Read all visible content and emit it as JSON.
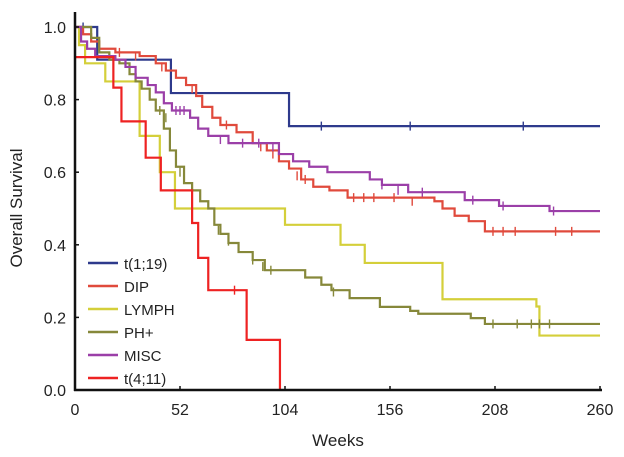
{
  "chart_data": {
    "type": "line",
    "subtype": "kaplan-meier step",
    "title": "",
    "xlabel": "Weeks",
    "ylabel": "Overall Survival",
    "xlim": [
      0,
      260
    ],
    "ylim": [
      0,
      1.0
    ],
    "x_ticks": [
      "0",
      "52",
      "104",
      "156",
      "208",
      "260"
    ],
    "y_ticks": [
      "0.0",
      "0.2",
      "0.4",
      "0.6",
      "0.8",
      "1.0"
    ],
    "grid": false,
    "legend_position": "bottom-left",
    "series": [
      {
        "name": "t(1;19)",
        "color": "#2e3a8c",
        "steps": [
          [
            0,
            1.0
          ],
          [
            11,
            0.91
          ],
          [
            47.5,
            0.818
          ],
          [
            106,
            0.727
          ]
        ],
        "censored": [
          [
            4,
            1.0
          ],
          [
            122,
            0.727
          ],
          [
            166,
            0.727
          ],
          [
            222,
            0.727
          ]
        ],
        "end": 260
      },
      {
        "name": "DIP",
        "color": "#e04a3c",
        "steps": [
          [
            0,
            1.0
          ],
          [
            4,
            0.98
          ],
          [
            8,
            0.96
          ],
          [
            12,
            0.94
          ],
          [
            20,
            0.93
          ],
          [
            32,
            0.92
          ],
          [
            40,
            0.9
          ],
          [
            45,
            0.88
          ],
          [
            50,
            0.86
          ],
          [
            55,
            0.84
          ],
          [
            60,
            0.81
          ],
          [
            63,
            0.78
          ],
          [
            68,
            0.75
          ],
          [
            72,
            0.73
          ],
          [
            80,
            0.71
          ],
          [
            88,
            0.68
          ],
          [
            95,
            0.66
          ],
          [
            101,
            0.63
          ],
          [
            106,
            0.61
          ],
          [
            112,
            0.58
          ],
          [
            118,
            0.56
          ],
          [
            126,
            0.55
          ],
          [
            135,
            0.53
          ],
          [
            178,
            0.52
          ],
          [
            182,
            0.5
          ],
          [
            188,
            0.48
          ],
          [
            195,
            0.465
          ],
          [
            203,
            0.437
          ]
        ],
        "censored": [
          [
            22,
            0.93
          ],
          [
            30,
            0.92
          ],
          [
            43,
            0.89
          ],
          [
            58,
            0.83
          ],
          [
            75,
            0.73
          ],
          [
            92,
            0.67
          ],
          [
            98,
            0.65
          ],
          [
            110,
            0.59
          ],
          [
            114,
            0.58
          ],
          [
            138,
            0.53
          ],
          [
            143,
            0.53
          ],
          [
            148,
            0.53
          ],
          [
            158,
            0.53
          ],
          [
            167,
            0.52
          ],
          [
            207,
            0.437
          ],
          [
            212,
            0.437
          ],
          [
            218,
            0.437
          ],
          [
            238,
            0.437
          ],
          [
            246,
            0.437
          ]
        ],
        "end": 260
      },
      {
        "name": "LYMPH",
        "color": "#d4cf3a",
        "steps": [
          [
            0,
            1.0
          ],
          [
            2,
            0.95
          ],
          [
            5,
            0.9
          ],
          [
            15,
            0.85
          ],
          [
            32,
            0.7
          ],
          [
            42,
            0.6
          ],
          [
            49.5,
            0.5
          ],
          [
            104,
            0.455
          ],
          [
            131.5,
            0.4
          ],
          [
            143.5,
            0.35
          ],
          [
            182,
            0.25
          ],
          [
            228.5,
            0.23
          ],
          [
            230,
            0.15
          ]
        ],
        "censored": [],
        "end": 260
      },
      {
        "name": "PH+",
        "color": "#86883a",
        "steps": [
          [
            0,
            1.0
          ],
          [
            8,
            0.97
          ],
          [
            12,
            0.93
          ],
          [
            17,
            0.91
          ],
          [
            22,
            0.9
          ],
          [
            27,
            0.87
          ],
          [
            30,
            0.85
          ],
          [
            33,
            0.83
          ],
          [
            37,
            0.8
          ],
          [
            40,
            0.77
          ],
          [
            44,
            0.72
          ],
          [
            47,
            0.66
          ],
          [
            50,
            0.615
          ],
          [
            54,
            0.57
          ],
          [
            58,
            0.55
          ],
          [
            62,
            0.52
          ],
          [
            66,
            0.5
          ],
          [
            69,
            0.455
          ],
          [
            72,
            0.43
          ],
          [
            76,
            0.405
          ],
          [
            81,
            0.38
          ],
          [
            88,
            0.358
          ],
          [
            94,
            0.33
          ],
          [
            114,
            0.31
          ],
          [
            122,
            0.29
          ],
          [
            127,
            0.275
          ],
          [
            136,
            0.253
          ],
          [
            151,
            0.229
          ],
          [
            166,
            0.218
          ],
          [
            170,
            0.21
          ],
          [
            196,
            0.198
          ],
          [
            203,
            0.182
          ]
        ],
        "censored": [
          [
            42,
            0.77
          ],
          [
            45,
            0.75
          ],
          [
            52,
            0.6
          ],
          [
            58,
            0.55
          ],
          [
            71,
            0.44
          ],
          [
            76,
            0.41
          ],
          [
            88,
            0.358
          ],
          [
            93,
            0.34
          ],
          [
            97,
            0.33
          ],
          [
            128,
            0.27
          ],
          [
            207,
            0.182
          ],
          [
            219,
            0.182
          ],
          [
            226,
            0.182
          ],
          [
            230,
            0.182
          ],
          [
            235,
            0.182
          ]
        ],
        "end": 260
      },
      {
        "name": "MISC",
        "color": "#9b3fa8",
        "steps": [
          [
            0,
            1.0
          ],
          [
            3,
            0.96
          ],
          [
            6,
            0.94
          ],
          [
            10,
            0.92
          ],
          [
            20,
            0.91
          ],
          [
            25,
            0.89
          ],
          [
            30,
            0.86
          ],
          [
            36,
            0.84
          ],
          [
            40,
            0.82
          ],
          [
            44,
            0.79
          ],
          [
            48,
            0.77
          ],
          [
            57,
            0.75
          ],
          [
            61,
            0.72
          ],
          [
            66,
            0.7
          ],
          [
            76,
            0.68
          ],
          [
            101,
            0.65
          ],
          [
            108,
            0.63
          ],
          [
            116,
            0.615
          ],
          [
            125,
            0.6
          ],
          [
            146,
            0.58
          ],
          [
            152,
            0.565
          ],
          [
            165,
            0.545
          ],
          [
            193,
            0.523
          ],
          [
            210,
            0.507
          ],
          [
            235,
            0.493
          ]
        ],
        "censored": [
          [
            6,
            0.95
          ],
          [
            30,
            0.87
          ],
          [
            50,
            0.77
          ],
          [
            52,
            0.77
          ],
          [
            54,
            0.77
          ],
          [
            72,
            0.69
          ],
          [
            83,
            0.68
          ],
          [
            91,
            0.68
          ],
          [
            98,
            0.67
          ],
          [
            101,
            0.66
          ],
          [
            152,
            0.565
          ],
          [
            160,
            0.55
          ],
          [
            172,
            0.545
          ],
          [
            197,
            0.523
          ],
          [
            212,
            0.507
          ],
          [
            237,
            0.493
          ]
        ],
        "end": 260
      },
      {
        "name": "t(4;11)",
        "color": "#ee2222",
        "steps": [
          [
            0,
            0.917
          ],
          [
            19,
            0.833
          ],
          [
            23,
            0.74
          ],
          [
            35,
            0.64
          ],
          [
            42.5,
            0.55
          ],
          [
            58,
            0.46
          ],
          [
            61,
            0.364
          ],
          [
            66,
            0.275
          ],
          [
            85,
            0.138
          ],
          [
            101.5,
            0.0
          ]
        ],
        "censored": [
          [
            79,
            0.275
          ]
        ],
        "end": 101.5
      }
    ]
  }
}
